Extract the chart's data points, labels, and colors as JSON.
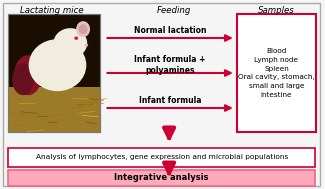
{
  "title_lactating": "Lactating mice",
  "title_feeding": "Feeding",
  "title_samples": "Samples",
  "feeding_labels": [
    "Normal lactation",
    "Infant formula +\npolyamines",
    "Infant formula"
  ],
  "samples_text": "Blood\nLymph node\nSpleen\nOral cavity, stomach,\nsmall and large\nintestine",
  "bottom_box1_text": "Analysis of lymphocytes, gene expression and microbial populations",
  "bottom_box2_text": "Integrative analysis",
  "bg_color": "#f5f5f5",
  "outer_border_color": "#aaaaaa",
  "samples_box_color": "#cc0033",
  "arrow_color": "#cc0033",
  "bottom_box1_border": "#cc0033",
  "bottom_box1_fill": "#ffffff",
  "bottom_box2_border": "#ee6688",
  "bottom_box2_fill": "#ffaabb",
  "arrow_down_color": "#cc0033",
  "label_color": "#000000",
  "mouse_bg": "#1a0e00",
  "mouse_bedding": "#9b7a2a",
  "mouse_body": "#f0ede0",
  "mouse_red": "#cc2233"
}
